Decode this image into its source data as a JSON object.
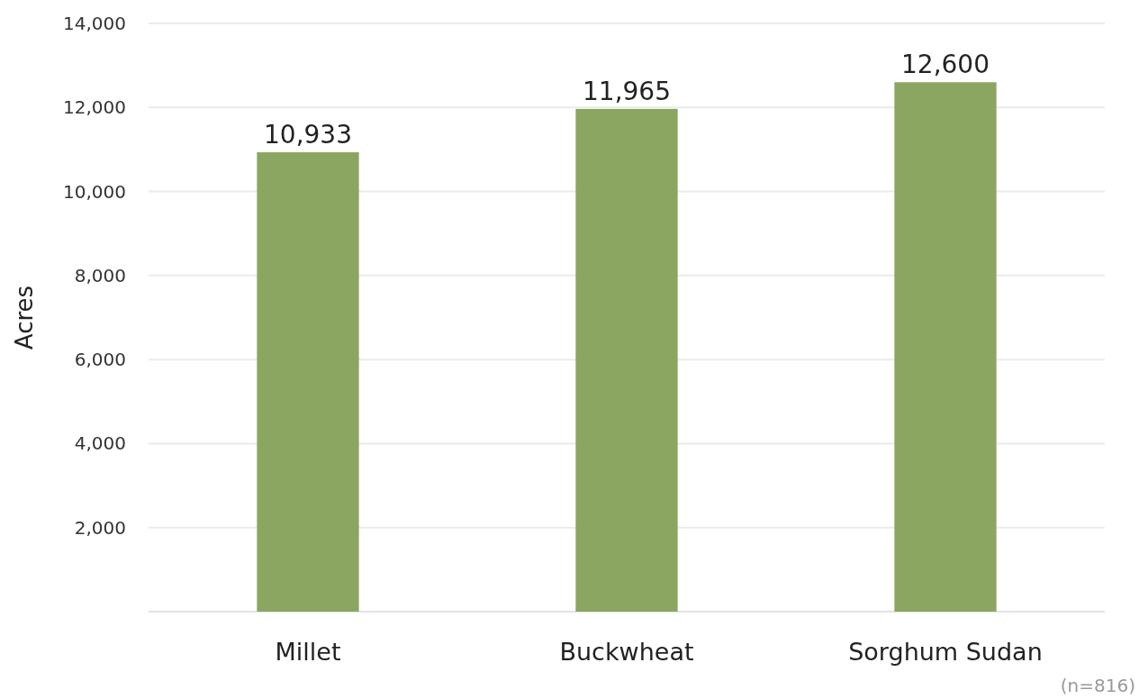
{
  "chart_data": {
    "type": "bar",
    "ylabel": "Acres",
    "categories": [
      "Millet",
      "Buckwheat",
      "Sorghum Sudan"
    ],
    "values": [
      10933,
      11965,
      12600
    ],
    "value_labels": [
      "10,933",
      "11,965",
      "12,600"
    ],
    "color": "#8ba660",
    "ylim": [
      0,
      14000
    ],
    "yticks": [
      {
        "value": 2000,
        "label": "2,000"
      },
      {
        "value": 4000,
        "label": "4,000"
      },
      {
        "value": 6000,
        "label": "6,000"
      },
      {
        "value": 8000,
        "label": "8,000"
      },
      {
        "value": 10000,
        "label": "10,000"
      },
      {
        "value": 12000,
        "label": "12,000"
      },
      {
        "value": 14000,
        "label": "14,000"
      }
    ],
    "grid": "y",
    "annotations": [
      "(n=816)"
    ]
  }
}
